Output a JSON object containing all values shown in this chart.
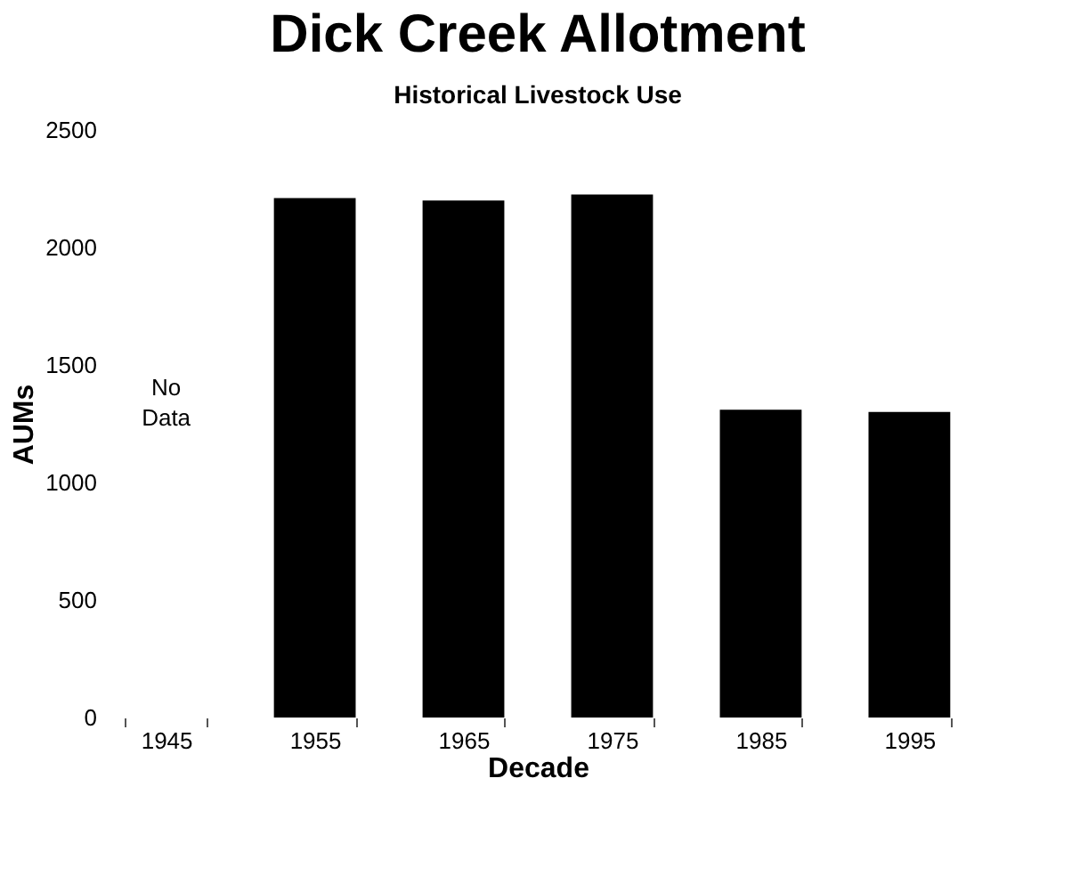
{
  "chart_data": {
    "type": "bar",
    "title": "Dick Creek Allotment",
    "subtitle": "Historical Livestock Use",
    "xlabel": "Decade",
    "ylabel": "AUMs",
    "categories": [
      "1945",
      "1955",
      "1965",
      "1975",
      "1985",
      "1995"
    ],
    "values": [
      null,
      2210,
      2200,
      2225,
      1310,
      1300
    ],
    "color": "#000000",
    "ylim": [
      0,
      2500
    ],
    "yticks": [
      0,
      500,
      1000,
      1500,
      2000,
      2500
    ],
    "grid": false,
    "annotations": [
      "No Data"
    ]
  }
}
